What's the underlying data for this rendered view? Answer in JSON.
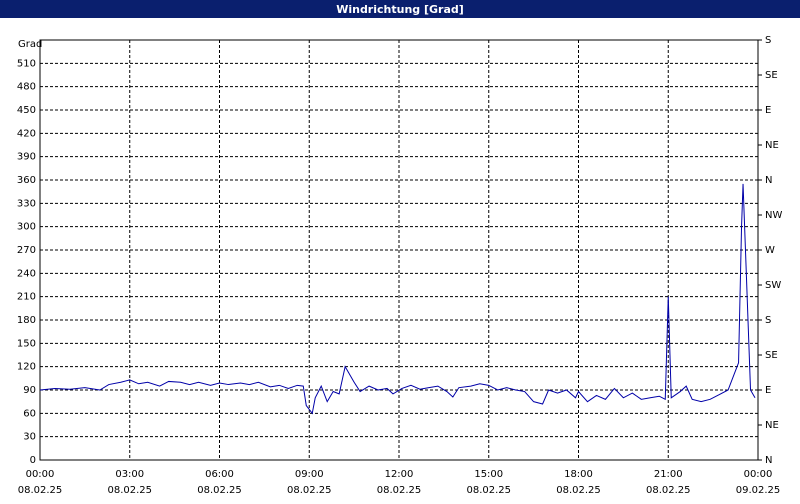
{
  "chart_data": {
    "type": "line",
    "title": "Windrichtung [Grad]",
    "y_label": "Grad",
    "xlim": [
      0,
      24
    ],
    "xticks": [
      {
        "value": 0,
        "label": "00:00",
        "date": "08.02.25"
      },
      {
        "value": 3,
        "label": "03:00",
        "date": "08.02.25"
      },
      {
        "value": 6,
        "label": "06:00",
        "date": "08.02.25"
      },
      {
        "value": 9,
        "label": "09:00",
        "date": "08.02.25"
      },
      {
        "value": 12,
        "label": "12:00",
        "date": "08.02.25"
      },
      {
        "value": 15,
        "label": "15:00",
        "date": "08.02.25"
      },
      {
        "value": 18,
        "label": "18:00",
        "date": "08.02.25"
      },
      {
        "value": 21,
        "label": "21:00",
        "date": "08.02.25"
      },
      {
        "value": 24,
        "label": "00:00",
        "date": "09.02.25"
      }
    ],
    "ylim": [
      0,
      540
    ],
    "yticks": [
      0,
      30,
      60,
      90,
      120,
      150,
      180,
      210,
      240,
      270,
      300,
      330,
      360,
      390,
      420,
      450,
      480,
      510
    ],
    "y2lim": [
      0,
      540
    ],
    "y2ticks": [
      {
        "value": 0,
        "label": "N"
      },
      {
        "value": 45,
        "label": "NE"
      },
      {
        "value": 90,
        "label": "E"
      },
      {
        "value": 135,
        "label": "SE"
      },
      {
        "value": 180,
        "label": "S"
      },
      {
        "value": 225,
        "label": "SW"
      },
      {
        "value": 270,
        "label": "W"
      },
      {
        "value": 315,
        "label": "NW"
      },
      {
        "value": 360,
        "label": "N"
      },
      {
        "value": 405,
        "label": "NE"
      },
      {
        "value": 450,
        "label": "E"
      },
      {
        "value": 495,
        "label": "SE"
      },
      {
        "value": 540,
        "label": "S"
      }
    ],
    "grid": true,
    "series": [
      {
        "color": "#0000a8",
        "x": [
          0,
          0.5,
          1,
          1.5,
          2,
          2.3,
          2.7,
          3,
          3.3,
          3.6,
          4,
          4.3,
          4.7,
          5,
          5.3,
          5.7,
          6,
          6.3,
          6.7,
          7,
          7.3,
          7.7,
          8,
          8.3,
          8.6,
          8.8,
          8.9,
          9.1,
          9.2,
          9.4,
          9.6,
          9.8,
          10,
          10.2,
          10.5,
          10.7,
          11,
          11.3,
          11.6,
          11.8,
          12.1,
          12.4,
          12.7,
          13,
          13.3,
          13.6,
          13.8,
          14,
          14.4,
          14.7,
          15,
          15.3,
          15.6,
          15.9,
          16.2,
          16.5,
          16.8,
          17,
          17.3,
          17.6,
          17.9,
          18,
          18.3,
          18.6,
          18.9,
          19.2,
          19.5,
          19.8,
          20.1,
          20.4,
          20.7,
          20.9,
          21,
          21.1,
          21.4,
          21.6,
          21.8,
          22.1,
          22.4,
          22.7,
          23,
          23.2,
          23.35,
          23.45,
          23.5,
          23.6,
          23.75,
          23.9
        ],
        "values": [
          90,
          92,
          91,
          93,
          90,
          97,
          100,
          103,
          98,
          100,
          95,
          101,
          100,
          97,
          100,
          96,
          99,
          97,
          99,
          97,
          100,
          94,
          96,
          92,
          96,
          95,
          70,
          60,
          80,
          95,
          75,
          88,
          85,
          120,
          100,
          88,
          95,
          90,
          92,
          85,
          92,
          96,
          91,
          93,
          95,
          88,
          81,
          93,
          95,
          98,
          96,
          90,
          93,
          90,
          88,
          75,
          72,
          90,
          86,
          90,
          80,
          88,
          75,
          83,
          78,
          92,
          80,
          86,
          78,
          80,
          82,
          78,
          210,
          80,
          88,
          95,
          78,
          75,
          78,
          84,
          90,
          110,
          125,
          300,
          355,
          250,
          90,
          80
        ]
      }
    ]
  }
}
